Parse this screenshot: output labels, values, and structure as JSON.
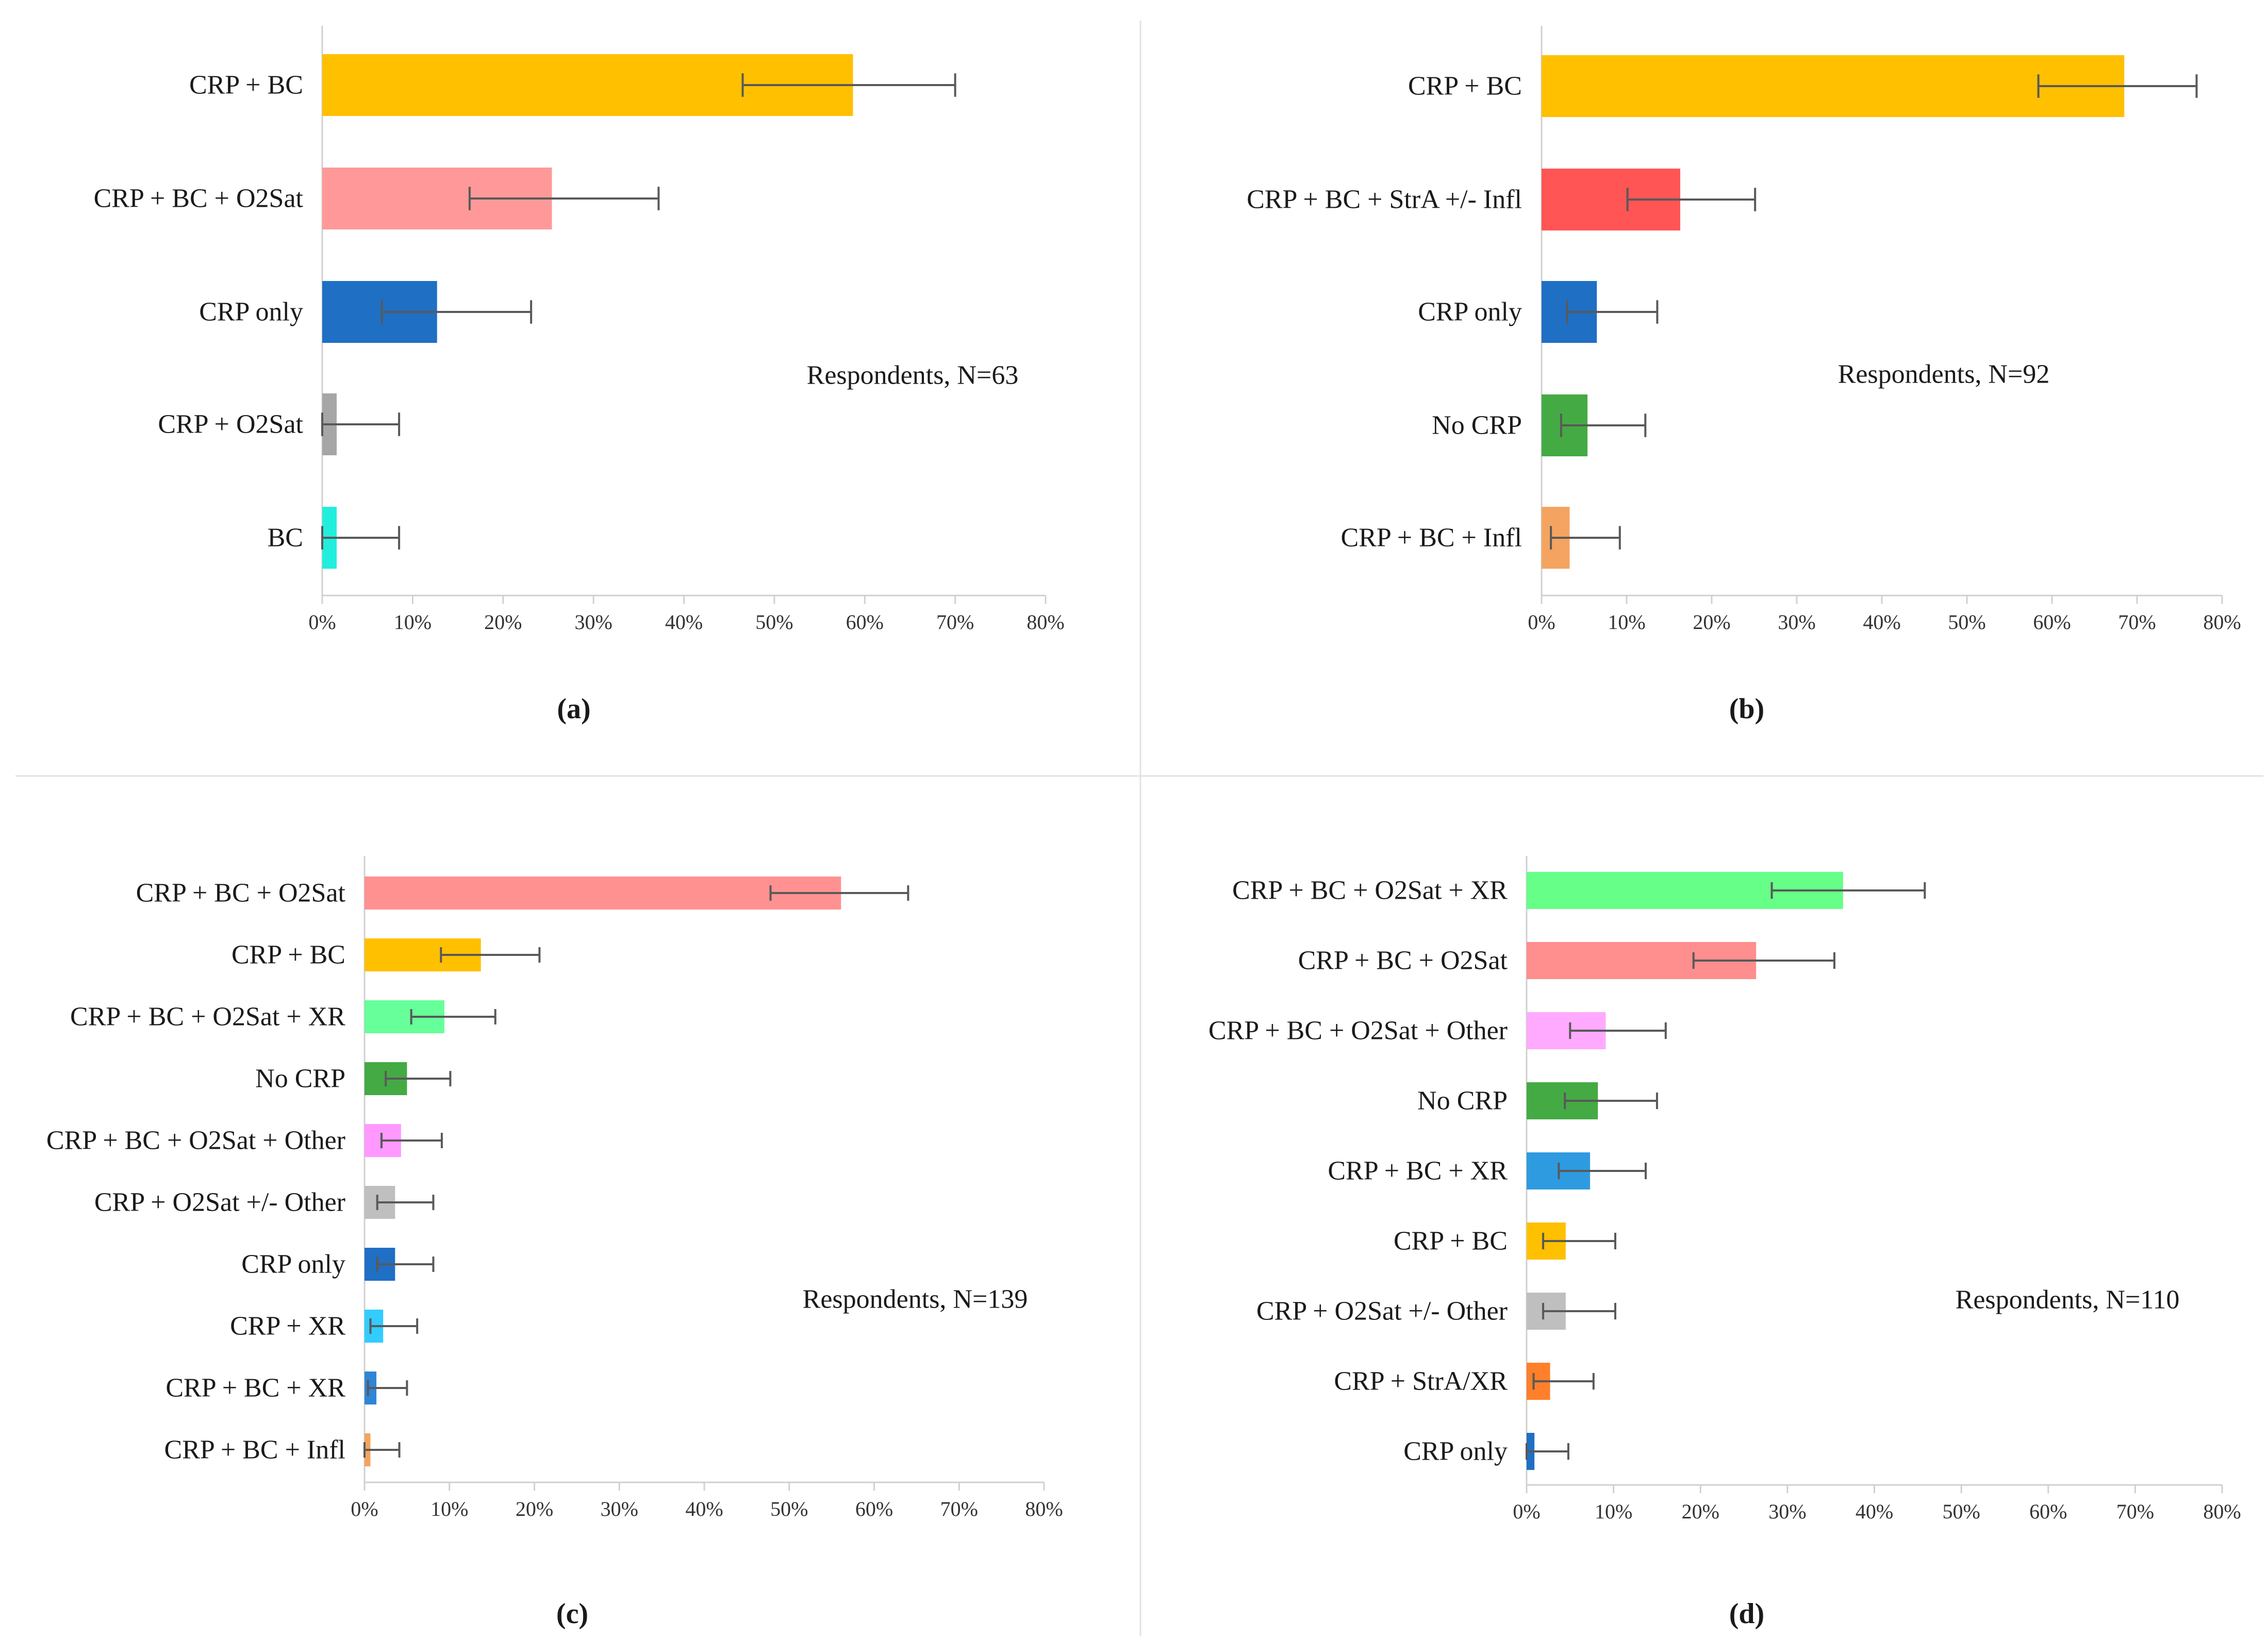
{
  "chart_data": [
    {
      "panel": "(a)",
      "type": "bar",
      "orientation": "horizontal",
      "annotation": "Respondents, N=63",
      "xlim": [
        0,
        80
      ],
      "xticks": [
        "0%",
        "10%",
        "20%",
        "30%",
        "40%",
        "50%",
        "60%",
        "70%",
        "80%"
      ],
      "categories": [
        "CRP + BC",
        "CRP + BC +  O2Sat",
        "CRP only",
        "CRP + O2Sat",
        "BC"
      ],
      "values": [
        58.7,
        25.4,
        12.7,
        1.6,
        1.6
      ],
      "errors_low": [
        46.5,
        16.3,
        6.6,
        0.0,
        0.0
      ],
      "errors_high": [
        70.0,
        37.2,
        23.1,
        8.5,
        8.5
      ],
      "colors": [
        "#FFC000",
        "#FF9999",
        "#1F6FC5",
        "#A6A6A6",
        "#22EEDD"
      ]
    },
    {
      "panel": "(b)",
      "type": "bar",
      "orientation": "horizontal",
      "annotation": "Respondents, N=92",
      "xlim": [
        0,
        80
      ],
      "xticks": [
        "0%",
        "10%",
        "20%",
        "30%",
        "40%",
        "50%",
        "60%",
        "70%",
        "80%"
      ],
      "categories": [
        "CRP + BC",
        "CRP + BC + StrA +/- Infl",
        "CRP only",
        "No CRP",
        "CRP + BC + Infl"
      ],
      "values": [
        68.5,
        16.3,
        6.5,
        5.4,
        3.3
      ],
      "errors_low": [
        58.4,
        10.1,
        3.0,
        2.3,
        1.1
      ],
      "errors_high": [
        77.0,
        25.1,
        13.6,
        12.2,
        9.2
      ],
      "colors": [
        "#FFC000",
        "#FF5555",
        "#1F6FC5",
        "#44AA44",
        "#F4A460"
      ]
    },
    {
      "panel": "(c)",
      "type": "bar",
      "orientation": "horizontal",
      "annotation": "Respondents, N=139",
      "xlim": [
        0,
        80
      ],
      "xticks": [
        "0%",
        "10%",
        "20%",
        "30%",
        "40%",
        "50%",
        "60%",
        "70%",
        "80%"
      ],
      "categories": [
        "CRP + BC + O2Sat",
        "CRP + BC",
        "CRP + BC + O2Sat + XR",
        "No CRP",
        "CRP + BC + O2Sat + Other",
        "CRP + O2Sat +/- Other",
        "CRP only",
        "CRP + XR",
        "CRP + BC + XR",
        "CRP + BC + Infl"
      ],
      "values": [
        56.1,
        13.7,
        9.4,
        5.0,
        4.3,
        3.6,
        3.6,
        2.2,
        1.4,
        0.7
      ],
      "errors_low": [
        47.8,
        9.0,
        5.5,
        2.5,
        2.0,
        1.5,
        1.5,
        0.7,
        0.4,
        0.0
      ],
      "errors_high": [
        64.0,
        20.6,
        15.4,
        10.1,
        9.1,
        8.1,
        8.1,
        6.2,
        5.0,
        4.1
      ],
      "colors": [
        "#FF9191",
        "#FFC000",
        "#66FF99",
        "#44AA44",
        "#FF99FF",
        "#BFBFBF",
        "#1F6FC5",
        "#33CCFF",
        "#2E86D6",
        "#F4A460"
      ]
    },
    {
      "panel": "(d)",
      "type": "bar",
      "orientation": "horizontal",
      "annotation": "Respondents, N=110",
      "xlim": [
        0,
        80
      ],
      "xticks": [
        "0%",
        "10%",
        "20%",
        "30%",
        "40%",
        "50%",
        "60%",
        "70%",
        "80%"
      ],
      "categories": [
        "CRP + BC + O2Sat + XR",
        "CRP + BC + O2Sat",
        "CRP + BC + O2Sat + Other",
        "No CRP",
        "CRP + BC + XR",
        "CRP + BC",
        "CRP + O2Sat +/- Other",
        "CRP + StrA/XR",
        "CRP only"
      ],
      "values": [
        36.4,
        26.4,
        9.1,
        8.2,
        7.3,
        4.5,
        4.5,
        2.7,
        0.9
      ],
      "errors_low": [
        28.2,
        19.2,
        5.0,
        4.4,
        3.7,
        1.9,
        1.9,
        0.8,
        0.0
      ],
      "errors_high": [
        45.8,
        35.4,
        16.0,
        15.0,
        13.7,
        10.2,
        10.2,
        7.7,
        4.8
      ],
      "colors": [
        "#66FF88",
        "#FF8E8E",
        "#FFAAFF",
        "#44AA44",
        "#2E9BE0",
        "#FFC000",
        "#BFBFBF",
        "#FF7F2A",
        "#1F6FC5"
      ]
    }
  ]
}
